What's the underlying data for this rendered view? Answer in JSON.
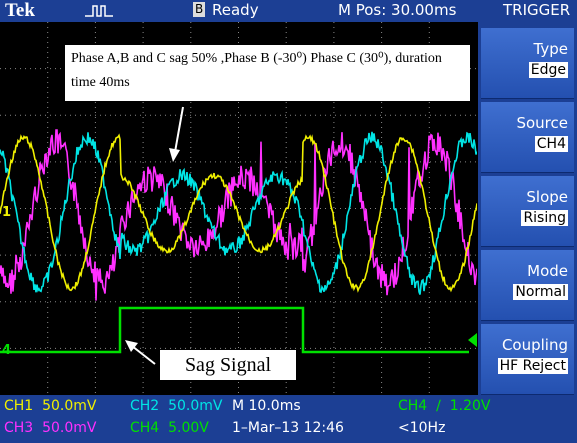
{
  "header": {
    "brand": "Tek",
    "status_badge": "B",
    "status": "Ready",
    "position": "M Pos: 30.00ms",
    "menu_title": "TRIGGER"
  },
  "menu": [
    {
      "label": "Type",
      "value": "Edge"
    },
    {
      "label": "Source",
      "value": "CH4"
    },
    {
      "label": "Slope",
      "value": "Rising"
    },
    {
      "label": "Mode",
      "value": "Normal"
    },
    {
      "label": "Coupling",
      "value": "HF Reject"
    }
  ],
  "annotations": {
    "note": "Phase A,B and C sag 50% ,Phase B (-30⁰)  Phase C (30⁰), duration time 40ms",
    "sag_label": "Sag Signal"
  },
  "markers": {
    "ch1": "1",
    "ch4": "4"
  },
  "footer": {
    "row1": [
      "CH1  50.0mV",
      "CH2  50.0mV",
      "M 10.0ms",
      "CH4  ∕  1.20V"
    ],
    "row2": [
      "CH3  50.0mV",
      "CH4  5.00V",
      "1–Mar–13 12:46",
      "<10Hz"
    ]
  }
}
